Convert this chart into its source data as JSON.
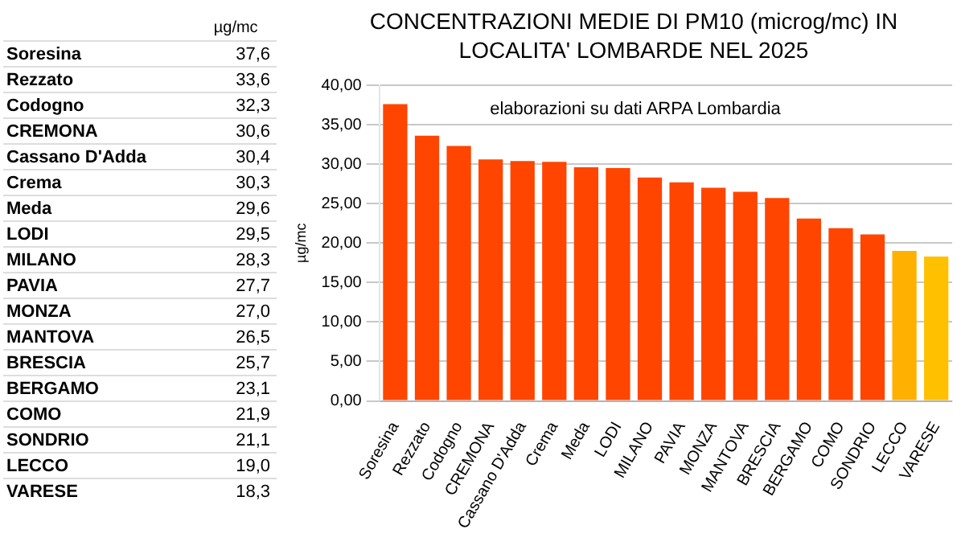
{
  "chart_data": [
    {
      "type": "other",
      "annotations": [
        "µg/mc",
        "Soresina",
        "37,6",
        "Rezzato",
        "33,6",
        "Codogno",
        "32,3",
        "CREMONA",
        "30,6",
        "Cassano D'Adda",
        "30,4",
        "Crema",
        "30,3",
        "Meda",
        "29,6",
        "LODI",
        "29,5",
        "MILANO",
        "28,3",
        "PAVIA",
        "27,7",
        "MONZA",
        "27,0",
        "MANTOVA",
        "26,5",
        "BRESCIA",
        "25,7",
        "BERGAMO",
        "23,1",
        "COMO",
        "21,9",
        "SONDRIO",
        "21,1",
        "LECCO",
        "19,0",
        "VARESE",
        "18,3"
      ]
    },
    {
      "type": "bar",
      "title": "CONCENTRAZIONI MEDIE DI PM10 (microg/mc) IN LOCALITA' LOMBARDE NEL 2025",
      "subtitle": "elaborazioni su dati ARPA Lombardia",
      "ylabel": "µg/mc",
      "categories": [
        "Soresina",
        "Rezzato",
        "Codogno",
        "CREMONA",
        "Cassano D'Adda",
        "Crema",
        "Meda",
        "LODI",
        "MILANO",
        "PAVIA",
        "MONZA",
        "MANTOVA",
        "BRESCIA",
        "BERGAMO",
        "COMO",
        "SONDRIO",
        "LECCO",
        "VARESE"
      ],
      "values": [
        37.6,
        33.6,
        32.3,
        30.6,
        30.4,
        30.3,
        29.6,
        29.5,
        28.3,
        27.7,
        27.0,
        26.5,
        25.7,
        23.1,
        21.9,
        21.1,
        19.0,
        18.3
      ],
      "colors": [
        "#ff4500",
        "#ff4500",
        "#ff4500",
        "#ff4500",
        "#ff4500",
        "#ff4500",
        "#ff4500",
        "#ff4500",
        "#ff4500",
        "#ff4500",
        "#ff4500",
        "#ff4500",
        "#ff4500",
        "#ff4500",
        "#ff4500",
        "#ff4500",
        "#ffb000",
        "#ffc000"
      ],
      "ylim": [
        0,
        40
      ],
      "yticks": [
        {
          "value": 0,
          "label": "0,00"
        },
        {
          "value": 5,
          "label": "5,00"
        },
        {
          "value": 10,
          "label": "10,00"
        },
        {
          "value": 15,
          "label": "15,00"
        },
        {
          "value": 20,
          "label": "20,00"
        },
        {
          "value": 25,
          "label": "25,00"
        },
        {
          "value": 30,
          "label": "30,00"
        },
        {
          "value": 35,
          "label": "35,00"
        },
        {
          "value": 40,
          "label": "40,00"
        }
      ],
      "grid": "y",
      "legend": false
    }
  ]
}
